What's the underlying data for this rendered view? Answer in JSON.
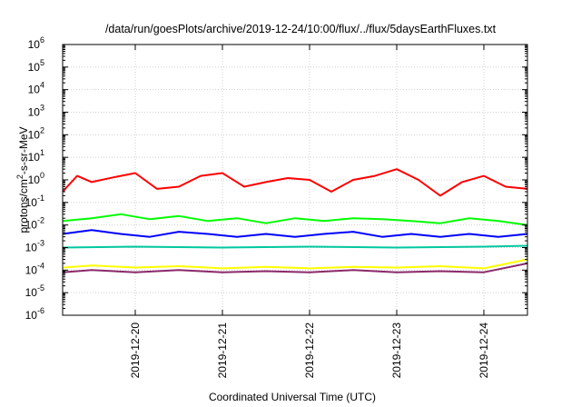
{
  "chart_data": {
    "type": "line",
    "title": "/data/run/goesPlots/archive/2019-12-24/10:00/flux/../flux/5daysEarthFluxes.txt",
    "xlabel": "Coordinated Universal Time (UTC)",
    "ylabel": "protons/cm2-s-sr-MeV",
    "yscale": "log",
    "ylim": [
      1e-06,
      1000000.0
    ],
    "xlim": [
      "2019-12-19 04:00",
      "2019-12-24 12:00"
    ],
    "yticks": [
      {
        "base": "10",
        "exp": "-6"
      },
      {
        "base": "10",
        "exp": "-5"
      },
      {
        "base": "10",
        "exp": "-4"
      },
      {
        "base": "10",
        "exp": "-3"
      },
      {
        "base": "10",
        "exp": "-2"
      },
      {
        "base": "10",
        "exp": "-1"
      },
      {
        "base": "10",
        "exp": "0"
      },
      {
        "base": "10",
        "exp": "1"
      },
      {
        "base": "10",
        "exp": "2"
      },
      {
        "base": "10",
        "exp": "3"
      },
      {
        "base": "10",
        "exp": "4"
      },
      {
        "base": "10",
        "exp": "5"
      },
      {
        "base": "10",
        "exp": "6"
      }
    ],
    "xticks": [
      "2019-12-20",
      "2019-12-21",
      "2019-12-22",
      "2019-12-23",
      "2019-12-24"
    ],
    "grid": true,
    "legend": "none",
    "series": [
      {
        "color": "#ff0000",
        "x": [
          "2019-12-19 04:00",
          "2019-12-19 08:00",
          "2019-12-19 12:00",
          "2019-12-19 18:00",
          "2019-12-20 00:00",
          "2019-12-20 06:00",
          "2019-12-20 12:00",
          "2019-12-20 18:00",
          "2019-12-21 00:00",
          "2019-12-21 06:00",
          "2019-12-21 12:00",
          "2019-12-21 18:00",
          "2019-12-22 00:00",
          "2019-12-22 06:00",
          "2019-12-22 12:00",
          "2019-12-22 18:00",
          "2019-12-23 00:00",
          "2019-12-23 06:00",
          "2019-12-23 12:00",
          "2019-12-23 18:00",
          "2019-12-24 00:00",
          "2019-12-24 06:00",
          "2019-12-24 12:00"
        ],
        "y": [
          0.3,
          1.5,
          0.8,
          1.3,
          2.0,
          0.4,
          0.5,
          1.5,
          2.0,
          0.5,
          0.8,
          1.2,
          1.0,
          0.3,
          1.0,
          1.5,
          3.0,
          1.0,
          0.2,
          0.8,
          1.5,
          0.5,
          0.4
        ]
      },
      {
        "color": "#00ff00",
        "x": [
          "2019-12-19 04:00",
          "2019-12-19 12:00",
          "2019-12-19 20:00",
          "2019-12-20 04:00",
          "2019-12-20 12:00",
          "2019-12-20 20:00",
          "2019-12-21 04:00",
          "2019-12-21 12:00",
          "2019-12-21 20:00",
          "2019-12-22 04:00",
          "2019-12-22 12:00",
          "2019-12-22 20:00",
          "2019-12-23 04:00",
          "2019-12-23 12:00",
          "2019-12-23 20:00",
          "2019-12-24 04:00",
          "2019-12-24 12:00"
        ],
        "y": [
          0.015,
          0.02,
          0.03,
          0.018,
          0.025,
          0.015,
          0.02,
          0.012,
          0.02,
          0.015,
          0.02,
          0.018,
          0.015,
          0.012,
          0.02,
          0.015,
          0.01
        ]
      },
      {
        "color": "#0000ff",
        "x": [
          "2019-12-19 04:00",
          "2019-12-19 12:00",
          "2019-12-19 20:00",
          "2019-12-20 04:00",
          "2019-12-20 12:00",
          "2019-12-20 20:00",
          "2019-12-21 04:00",
          "2019-12-21 12:00",
          "2019-12-21 20:00",
          "2019-12-22 04:00",
          "2019-12-22 12:00",
          "2019-12-22 20:00",
          "2019-12-23 04:00",
          "2019-12-23 12:00",
          "2019-12-23 20:00",
          "2019-12-24 04:00",
          "2019-12-24 12:00"
        ],
        "y": [
          0.004,
          0.006,
          0.004,
          0.003,
          0.005,
          0.004,
          0.003,
          0.004,
          0.003,
          0.004,
          0.005,
          0.003,
          0.004,
          0.003,
          0.004,
          0.003,
          0.004
        ]
      },
      {
        "color": "#00c8a0",
        "x": [
          "2019-12-19 04:00",
          "2019-12-20 00:00",
          "2019-12-21 00:00",
          "2019-12-22 00:00",
          "2019-12-23 00:00",
          "2019-12-24 00:00",
          "2019-12-24 12:00"
        ],
        "y": [
          0.001,
          0.0011,
          0.001,
          0.0011,
          0.001,
          0.0011,
          0.0012
        ]
      },
      {
        "color": "#ffff00",
        "x": [
          "2019-12-19 04:00",
          "2019-12-19 12:00",
          "2019-12-20 00:00",
          "2019-12-20 12:00",
          "2019-12-21 00:00",
          "2019-12-21 12:00",
          "2019-12-22 00:00",
          "2019-12-22 12:00",
          "2019-12-23 00:00",
          "2019-12-23 12:00",
          "2019-12-24 00:00",
          "2019-12-24 12:00"
        ],
        "y": [
          0.00013,
          0.00016,
          0.00013,
          0.00015,
          0.00012,
          0.00014,
          0.00012,
          0.00014,
          0.00013,
          0.00015,
          0.00012,
          0.0003
        ]
      },
      {
        "color": "#8b2a6a",
        "x": [
          "2019-12-19 04:00",
          "2019-12-19 12:00",
          "2019-12-20 00:00",
          "2019-12-20 12:00",
          "2019-12-21 00:00",
          "2019-12-21 12:00",
          "2019-12-22 00:00",
          "2019-12-22 12:00",
          "2019-12-23 00:00",
          "2019-12-23 12:00",
          "2019-12-24 00:00",
          "2019-12-24 12:00"
        ],
        "y": [
          8e-05,
          0.0001,
          8e-05,
          0.0001,
          8e-05,
          9e-05,
          8e-05,
          0.0001,
          8e-05,
          9e-05,
          8e-05,
          0.0002
        ]
      }
    ]
  }
}
